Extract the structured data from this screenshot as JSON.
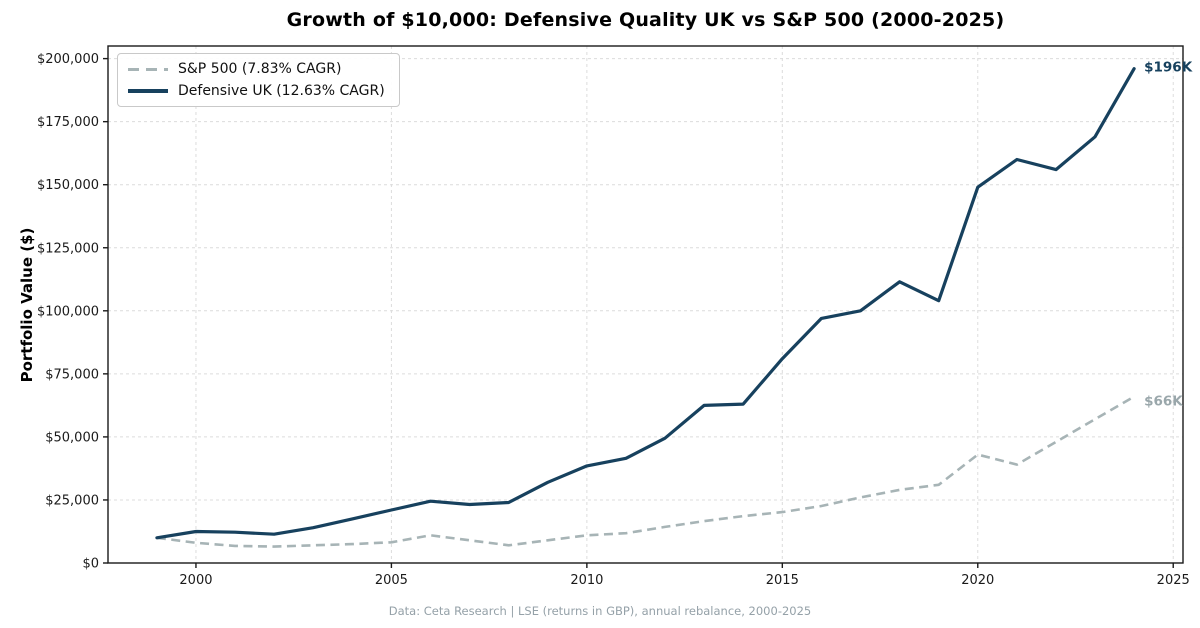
{
  "title": "Growth of $10,000: Defensive Quality UK vs S&P 500 (2000-2025)",
  "footer": "Data: Ceta Research | LSE (returns in GBP), annual rebalance, 2000-2025",
  "y_axis": {
    "label": "Portfolio Value ($)",
    "ticks": [
      "$0",
      "$25,000",
      "$50,000",
      "$75,000",
      "$100,000",
      "$125,000",
      "$150,000",
      "$175,000",
      "$200,000"
    ],
    "tick_values": [
      0,
      25000,
      50000,
      75000,
      100000,
      125000,
      150000,
      175000,
      200000
    ]
  },
  "x_axis": {
    "ticks": [
      "2000",
      "2005",
      "2010",
      "2015",
      "2020",
      "2025"
    ],
    "tick_values": [
      2000,
      2005,
      2010,
      2015,
      2020,
      2025
    ]
  },
  "legend": {
    "items": [
      {
        "label": "S&P 500 (7.83% CAGR)",
        "color": "#a7b4b6",
        "style": "dashed"
      },
      {
        "label": "Defensive UK (12.63% CAGR)",
        "color": "#17415e",
        "style": "solid"
      }
    ]
  },
  "colors": {
    "sp500_line": "#a7b4b6",
    "defensive_line": "#17415e",
    "sp500_label": "#9aa7ab",
    "defensive_label": "#17415e",
    "gridline": "#dcdcdc",
    "axis": "#1a1a1a",
    "footer_text": "#95a1a8"
  },
  "chart_data": {
    "type": "line",
    "title": "Growth of $10,000: Defensive Quality UK vs S&P 500 (2000-2025)",
    "xlabel": "",
    "ylabel": "Portfolio Value ($)",
    "grid": true,
    "legend_position": "upper-left",
    "xlim": [
      1997.75,
      2025.25
    ],
    "ylim": [
      0,
      205000
    ],
    "x": [
      1999,
      2000,
      2001,
      2002,
      2003,
      2004,
      2005,
      2006,
      2007,
      2008,
      2009,
      2010,
      2011,
      2012,
      2013,
      2014,
      2015,
      2016,
      2017,
      2018,
      2019,
      2020,
      2021,
      2022,
      2023,
      2024
    ],
    "series": [
      {
        "name": "S&P 500 (7.83% CAGR)",
        "color": "#a7b4b6",
        "dash": true,
        "end_label": "$66K",
        "end_label_color": "#9aa7ab",
        "values": [
          10000,
          8000,
          6800,
          6500,
          7000,
          7500,
          8200,
          11000,
          9000,
          7000,
          9000,
          11000,
          11800,
          14300,
          16600,
          18600,
          20200,
          22600,
          26000,
          29000,
          31000,
          43000,
          39000,
          48000,
          57000,
          66000
        ]
      },
      {
        "name": "Defensive UK (12.63% CAGR)",
        "color": "#17415e",
        "dash": false,
        "end_label": "$196K",
        "end_label_color": "#17415e",
        "values": [
          10000,
          12500,
          12200,
          11400,
          14000,
          17500,
          21000,
          24500,
          23200,
          24000,
          32000,
          38500,
          41500,
          49500,
          62500,
          63000,
          81000,
          97000,
          100000,
          111500,
          104000,
          149000,
          160000,
          156000,
          169000,
          196000
        ]
      }
    ]
  }
}
